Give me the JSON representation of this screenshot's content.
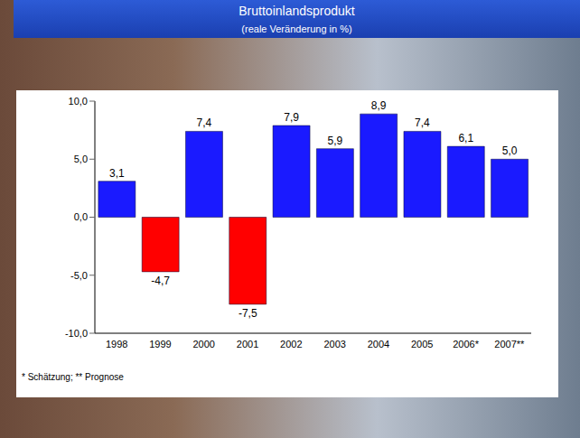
{
  "chart_data": {
    "type": "bar",
    "title": "Bruttoinlandsprodukt",
    "subtitle": "(reale Veränderung in %)",
    "categories": [
      "1998",
      "1999",
      "2000",
      "2001",
      "2002",
      "2003",
      "2004",
      "2005",
      "2006*",
      "2007**"
    ],
    "values": [
      3.1,
      -4.7,
      7.4,
      -7.5,
      7.9,
      5.9,
      8.9,
      7.4,
      6.1,
      5.0
    ],
    "value_labels": [
      "3,1",
      "-4,7",
      "7,4",
      "-7,5",
      "7,9",
      "5,9",
      "8,9",
      "7,4",
      "6,1",
      "5,0"
    ],
    "colors": [
      "#1a1aff",
      "#ff0000",
      "#1a1aff",
      "#ff0000",
      "#1a1aff",
      "#1a1aff",
      "#1a1aff",
      "#1a1aff",
      "#1a1aff",
      "#1a1aff"
    ],
    "ylim": [
      -10,
      10
    ],
    "yticks": [
      {
        "value": -10,
        "label": "-10,0"
      },
      {
        "value": -5,
        "label": "-5,0"
      },
      {
        "value": 0,
        "label": "0,0"
      },
      {
        "value": 5,
        "label": "5,0"
      },
      {
        "value": 10,
        "label": "10,0"
      }
    ],
    "grid": false,
    "data_labels": true,
    "annotations": [
      "* Schätzung; ** Prognose"
    ]
  }
}
